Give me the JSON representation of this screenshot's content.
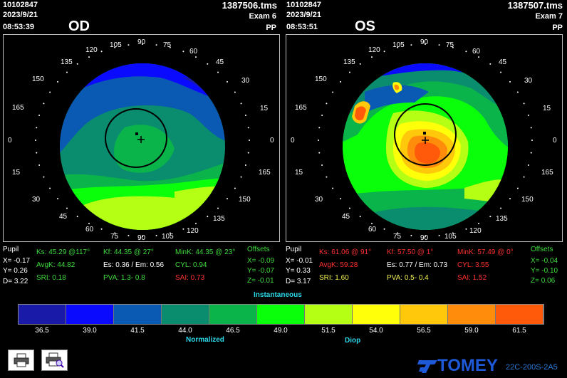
{
  "od": {
    "id": "10102847",
    "date": "2023/9/21",
    "time": "08:53:39",
    "file": "1387506.tms",
    "exam": "Exam 6",
    "mode": "PP",
    "eye": "OD",
    "angles_left": [
      "120",
      "135",
      "150",
      "165",
      "0",
      "15",
      "30",
      "45",
      "60"
    ],
    "angles_top": [
      "105",
      "90",
      "75"
    ],
    "angles_right": [
      "60",
      "45",
      "30",
      "15",
      "0",
      "165",
      "150",
      "135",
      "120"
    ],
    "angles_bottom": [
      "75",
      "90",
      "105"
    ],
    "pupil_label": "Pupil",
    "pupil_x": "X= -0.17",
    "pupil_y": "Y= 0.26",
    "pupil_d": "D= 3.22",
    "ks": "Ks: 45.29 @117°",
    "avgk": "AvgK: 44.82",
    "sri": "SRI: 0.18",
    "kf": "Kf: 44.35 @ 27°",
    "es_em": "Es: 0.36 / Em: 0.56",
    "pva": "PVA:   1.3-   0.8",
    "mink": "MinK: 44.35 @ 23°",
    "cyl": "CYL:   0.94",
    "sai": "SAI:  0.73",
    "offsets_label": "Offsets",
    "off_x": "X= -0.09",
    "off_y": "Y= -0.07",
    "off_z": "Z= -0.01"
  },
  "os": {
    "id": "10102847",
    "date": "2023/9/21",
    "time": "08:53:51",
    "file": "1387507.tms",
    "exam": "Exam 7",
    "mode": "PP",
    "eye": "OS",
    "pupil_label": "Pupil",
    "pupil_x": "X= -0.01",
    "pupil_y": "Y= 0.33",
    "pupil_d": "D= 3.17",
    "ks": "Ks: 61.06 @ 91°",
    "avgk": "AvgK: 59.28",
    "sri": "SRI: 1.60",
    "kf": "Kf: 57.50 @  1°",
    "es_em": "Es: 0.77 / Em: 0.73",
    "pva": "PVA:   0.5-   0.4",
    "mink": "MinK: 57.49 @  0°",
    "cyl": "CYL:   3.55",
    "sai": "SAI:  1.52",
    "offsets_label": "Offsets",
    "off_x": "X= -0.04",
    "off_y": "Y= -0.10",
    "off_z": "Z=  0.06"
  },
  "scale": {
    "title": "Instantaneous",
    "subtitle": "Normalized",
    "unit": "Diop",
    "ticks": [
      "36.5",
      "39.0",
      "41.5",
      "44.0",
      "46.5",
      "49.0",
      "51.5",
      "54.0",
      "56.5",
      "59.0",
      "61.5"
    ],
    "colors": [
      "#1a1aa8",
      "#0a0aff",
      "#0a5ab4",
      "#0a8c6e",
      "#0ab44a",
      "#0aff0a",
      "#b4ff14",
      "#ffff0a",
      "#ffc80a",
      "#ff8c0a",
      "#ff5a0a"
    ]
  },
  "footer": {
    "brand": "TOMEY",
    "model": "22C-200S-2A5"
  }
}
